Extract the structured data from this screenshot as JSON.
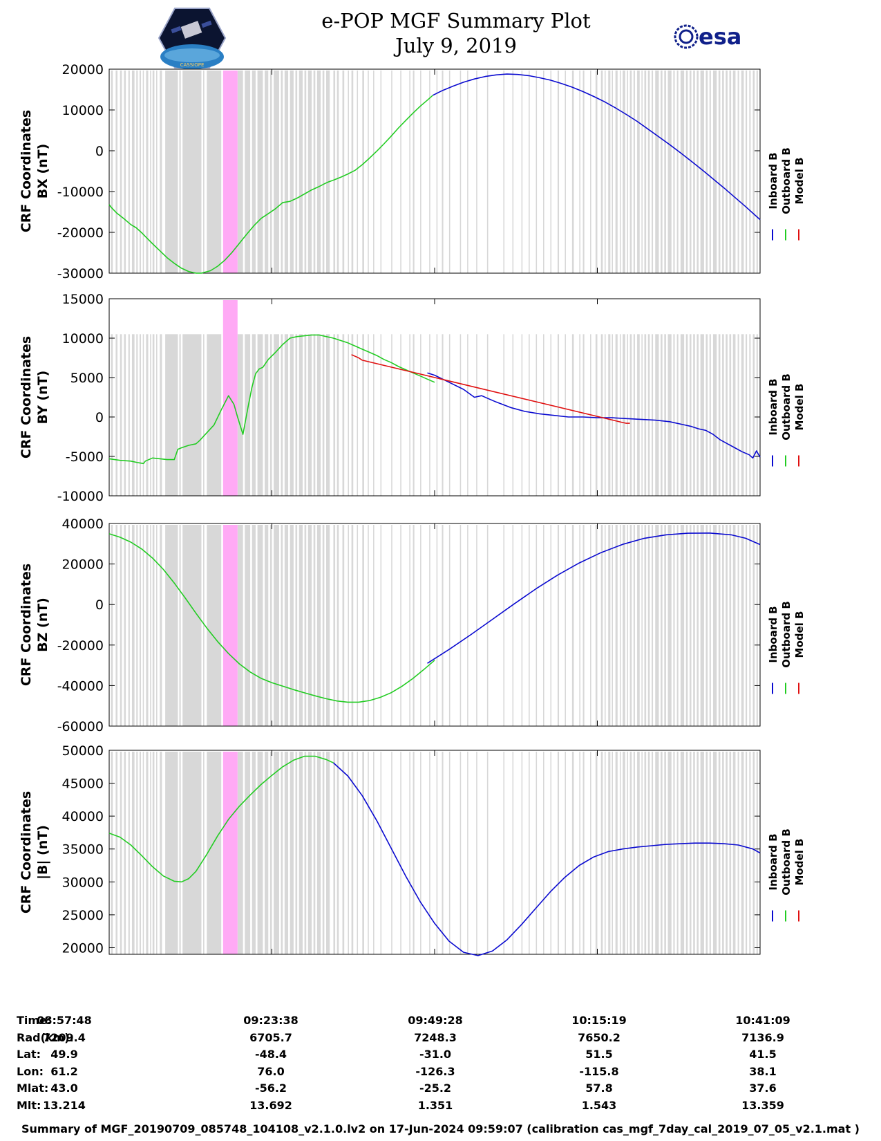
{
  "header": {
    "title_line1": "e-POP MGF Summary Plot",
    "title_line2": "July 9, 2019",
    "logo_left_text": "CASSIOPE",
    "logo_right_text": "esa"
  },
  "colors": {
    "inboard": "#0a0ad0",
    "outboard": "#22cc22",
    "model": "#e01010",
    "gap_bands": "#d8d8d8",
    "highlight_band": "#ffaaf5"
  },
  "chart_data": [
    {
      "type": "line",
      "id": "bx",
      "ylabel": [
        "CRF Coordinates",
        "BX (nT)"
      ],
      "ylim": [
        -30000,
        20000
      ],
      "yticks": [
        -30000,
        -20000,
        -10000,
        0,
        10000,
        20000
      ],
      "ytick_labels": [
        "-30000",
        "-20000",
        "-10000",
        "0",
        "10000",
        "20000"
      ],
      "legend": [
        "Inboard B",
        "Outboard B",
        "Model B"
      ],
      "series": [
        {
          "name": "Outboard B",
          "color": "#22cc22",
          "x": [
            0,
            0.5,
            2,
            4,
            6,
            7.5,
            9,
            10,
            12,
            14,
            16,
            18,
            20,
            22,
            24,
            25.5,
            28,
            30,
            32,
            34,
            36,
            38,
            40,
            42,
            44,
            46,
            48,
            50,
            52,
            54,
            56,
            58,
            59.5,
            60.5,
            62,
            64,
            66,
            68,
            70,
            72,
            74,
            76,
            78,
            80,
            82,
            84,
            86,
            88,
            89.5
          ],
          "y": [
            -13200,
            -13800,
            -15200,
            -16600,
            -18100,
            -18900,
            -20100,
            -21000,
            -22800,
            -24500,
            -26200,
            -27600,
            -28800,
            -29600,
            -30000,
            -30000,
            -29400,
            -28300,
            -26800,
            -24900,
            -22700,
            -20500,
            -18400,
            -16600,
            -15400,
            -14200,
            -12700,
            -12400,
            -11600,
            -10600,
            -9600,
            -8800,
            -8100,
            -7700,
            -7200,
            -6500,
            -5700,
            -4800,
            -3400,
            -1800,
            -100,
            1700,
            3600,
            5600,
            7400,
            9200,
            10900,
            12400,
            13600
          ]
        },
        {
          "name": "Inboard B",
          "color": "#0a0ad0",
          "x": [
            89.5,
            92,
            95,
            98,
            101,
            104,
            107,
            110,
            113,
            116,
            119,
            122,
            125,
            128,
            131,
            134,
            137,
            140,
            143,
            146,
            149,
            152,
            155,
            158,
            161,
            164,
            167,
            170,
            173,
            176,
            179,
            180
          ],
          "y": [
            13600,
            14700,
            15800,
            16800,
            17600,
            18200,
            18600,
            18800,
            18700,
            18400,
            17900,
            17300,
            16500,
            15600,
            14500,
            13300,
            12000,
            10500,
            8900,
            7200,
            5300,
            3400,
            1500,
            -500,
            -2600,
            -4700,
            -6900,
            -9100,
            -11400,
            -13700,
            -16100,
            -16900
          ]
        }
      ]
    },
    {
      "type": "line",
      "id": "by",
      "ylabel": [
        "CRF Coordinates",
        "BY (nT)"
      ],
      "ylim": [
        -10000,
        15000
      ],
      "yticks": [
        -10000,
        -5000,
        0,
        5000,
        10000,
        15000
      ],
      "ytick_labels": [
        "-10000",
        "-5000",
        "0",
        "5000",
        "10000",
        "15000"
      ],
      "legend": [
        "Inboard B",
        "Outboard B",
        "Model B"
      ],
      "series": [
        {
          "name": "Outboard B",
          "color": "#22cc22",
          "x": [
            0,
            3,
            6,
            8,
            9.5,
            10,
            12,
            14,
            16,
            17,
            18,
            19,
            20,
            22,
            24,
            25,
            27,
            29,
            31,
            33,
            34.5,
            35.5,
            37,
            38.5,
            39.5,
            40.5,
            41.5,
            42.5,
            44,
            46,
            48,
            50,
            52,
            54,
            56,
            58,
            60,
            62,
            64,
            66,
            68,
            70,
            72,
            74,
            76,
            78,
            80,
            82,
            84,
            86,
            88,
            90
          ],
          "y": [
            -5300,
            -5500,
            -5600,
            -5800,
            -5900,
            -5600,
            -5200,
            -5300,
            -5400,
            -5400,
            -5400,
            -4100,
            -3900,
            -3600,
            -3400,
            -3000,
            -2000,
            -1000,
            900,
            2700,
            1600,
            0,
            -2200,
            1500,
            3800,
            5500,
            6100,
            6300,
            7300,
            8200,
            9200,
            10000,
            10200,
            10300,
            10400,
            10400,
            10200,
            10000,
            9700,
            9400,
            9000,
            8600,
            8200,
            7800,
            7300,
            6900,
            6400,
            6000,
            5600,
            5200,
            4800,
            4400
          ]
        },
        {
          "name": "Inboard B",
          "color": "#0a0ad0",
          "x": [
            88,
            90,
            94,
            98,
            101,
            103,
            105,
            107,
            111,
            115,
            119,
            123,
            127,
            131,
            135,
            139,
            143,
            147,
            151,
            155,
            159,
            161,
            163,
            165,
            167,
            169,
            171,
            173,
            175,
            177,
            178,
            179,
            180
          ],
          "y": [
            5600,
            5300,
            4400,
            3500,
            2500,
            2700,
            2300,
            1900,
            1200,
            700,
            400,
            200,
            0,
            0,
            -100,
            -100,
            -200,
            -300,
            -400,
            -600,
            -1000,
            -1200,
            -1500,
            -1700,
            -2200,
            -2900,
            -3400,
            -3900,
            -4400,
            -4800,
            -5200,
            -4300,
            -5100
          ]
        },
        {
          "name": "Model B",
          "color": "#e01010",
          "x": [
            67,
            68,
            69,
            70,
            142,
            143,
            144
          ],
          "y": [
            7900,
            7700,
            7500,
            7200,
            -700,
            -800,
            -800
          ]
        }
      ]
    },
    {
      "type": "line",
      "id": "bz",
      "ylabel": [
        "CRF Coordinates",
        "BZ (nT)"
      ],
      "ylim": [
        -60000,
        40000
      ],
      "yticks": [
        -60000,
        -40000,
        -20000,
        0,
        20000,
        40000
      ],
      "ytick_labels": [
        "-60000",
        "-40000",
        "-20000",
        "0",
        "20000",
        "40000"
      ],
      "legend": [
        "Inboard B",
        "Outboard B",
        "Model B"
      ],
      "series": [
        {
          "name": "Outboard B",
          "color": "#22cc22",
          "x": [
            0,
            3,
            6,
            9,
            12,
            15,
            18,
            21,
            24,
            27,
            30,
            33,
            36,
            39,
            42,
            45,
            48,
            51,
            54,
            57,
            60,
            63,
            66,
            69,
            72,
            75,
            78,
            81,
            84,
            87,
            90
          ],
          "y": [
            34900,
            33200,
            30800,
            27400,
            22900,
            17300,
            10600,
            3300,
            -4300,
            -11600,
            -18300,
            -24200,
            -29300,
            -33300,
            -36400,
            -38600,
            -40300,
            -42000,
            -43600,
            -45100,
            -46500,
            -47600,
            -48200,
            -48200,
            -47400,
            -45800,
            -43500,
            -40300,
            -36500,
            -32100,
            -27500
          ]
        },
        {
          "name": "Inboard B",
          "color": "#0a0ad0",
          "x": [
            88,
            94,
            100,
            106,
            112,
            118,
            124,
            130,
            136,
            142,
            148,
            154,
            160,
            166,
            172,
            176,
            180
          ],
          "y": [
            -29000,
            -22200,
            -14900,
            -7300,
            300,
            7700,
            14500,
            20500,
            25600,
            29700,
            32700,
            34400,
            35200,
            35300,
            34400,
            32700,
            29600
          ]
        }
      ]
    },
    {
      "type": "line",
      "id": "btotal",
      "ylabel": [
        "CRF Coordinates",
        "|B| (nT)"
      ],
      "ylim": [
        19000,
        50000
      ],
      "yticks": [
        20000,
        25000,
        30000,
        35000,
        40000,
        45000,
        50000
      ],
      "ytick_labels": [
        "20000",
        "25000",
        "30000",
        "35000",
        "40000",
        "45000",
        "50000"
      ],
      "legend": [
        "Inboard B",
        "Outboard B",
        "Model B"
      ],
      "series": [
        {
          "name": "Outboard B",
          "color": "#22cc22",
          "x": [
            0,
            3,
            6,
            9,
            12,
            15,
            18,
            20,
            22,
            24,
            27,
            30,
            33,
            36,
            39,
            42,
            45,
            48,
            51,
            54,
            57,
            60,
            62
          ],
          "y": [
            37400,
            36800,
            35600,
            34000,
            32300,
            30900,
            30100,
            30000,
            30500,
            31600,
            34200,
            37000,
            39500,
            41500,
            43200,
            44800,
            46200,
            47500,
            48500,
            49100,
            49100,
            48600,
            48100
          ]
        },
        {
          "name": "Inboard B",
          "color": "#0a0ad0",
          "x": [
            62,
            66,
            70,
            74,
            78,
            82,
            86,
            90,
            94,
            98,
            102,
            106,
            110,
            114,
            118,
            122,
            126,
            130,
            134,
            138,
            142,
            146,
            150,
            154,
            158,
            162,
            166,
            170,
            174,
            178,
            180
          ],
          "y": [
            48100,
            46100,
            43100,
            39300,
            35100,
            30900,
            27000,
            23700,
            21000,
            19300,
            18800,
            19500,
            21200,
            23500,
            26000,
            28500,
            30700,
            32500,
            33800,
            34600,
            35000,
            35300,
            35500,
            35700,
            35800,
            35900,
            35900,
            35800,
            35600,
            35000,
            34400
          ]
        }
      ]
    }
  ],
  "time_axis": {
    "range_min": [
      0,
      180
    ],
    "ticks_min": [
      0,
      45,
      90,
      135,
      180
    ],
    "highlight_band_min": [
      31.5,
      35.5
    ],
    "gap_bands_min": [
      [
        0.5,
        1.0
      ],
      [
        1.8,
        2.3
      ],
      [
        3.0,
        3.5
      ],
      [
        4.1,
        4.6
      ],
      [
        5.3,
        5.7
      ],
      [
        6.3,
        7.0
      ],
      [
        7.5,
        7.9
      ],
      [
        8.4,
        8.8
      ],
      [
        9.3,
        9.6
      ],
      [
        10.2,
        10.8
      ],
      [
        11.3,
        11.6
      ],
      [
        12.0,
        12.5
      ],
      [
        13.0,
        13.3
      ],
      [
        14.0,
        14.6
      ],
      [
        15.5,
        19.0
      ],
      [
        19.4,
        19.8
      ],
      [
        20.3,
        25.5
      ],
      [
        26.0,
        26.3
      ],
      [
        27.0,
        31.0
      ],
      [
        35.5,
        37.0
      ],
      [
        37.5,
        39.0
      ],
      [
        39.5,
        40.5
      ],
      [
        41.0,
        42.5
      ],
      [
        43.0,
        44.0
      ],
      [
        44.5,
        45.0
      ],
      [
        45.5,
        47.0
      ],
      [
        47.5,
        48.0
      ],
      [
        48.5,
        49.5
      ],
      [
        50.0,
        51.0
      ],
      [
        51.5,
        52.0
      ],
      [
        52.5,
        53.5
      ],
      [
        54.0,
        54.5
      ],
      [
        55.0,
        56.0
      ],
      [
        56.5,
        57.0
      ],
      [
        57.5,
        58.5
      ],
      [
        59.0,
        59.5
      ],
      [
        60.0,
        61.0
      ],
      [
        62.0,
        62.5
      ],
      [
        63.0,
        63.5
      ],
      [
        64.5,
        65.0
      ],
      [
        66.0,
        66.3
      ],
      [
        67.0,
        67.5
      ],
      [
        68.5,
        68.8
      ],
      [
        70.0,
        70.5
      ],
      [
        71.5,
        71.8
      ],
      [
        73.0,
        73.3
      ],
      [
        75.0,
        75.3
      ],
      [
        78.0,
        78.3
      ],
      [
        80.5,
        80.8
      ],
      [
        83.0,
        83.3
      ],
      [
        84.0,
        84.4
      ],
      [
        86.0,
        86.3
      ],
      [
        88.5,
        88.8
      ],
      [
        90.5,
        90.8
      ],
      [
        92.0,
        92.4
      ],
      [
        94.0,
        94.3
      ],
      [
        97.0,
        97.3
      ],
      [
        99.0,
        99.3
      ],
      [
        101.5,
        101.8
      ],
      [
        104.5,
        104.8
      ],
      [
        109.0,
        109.3
      ],
      [
        111.5,
        111.8
      ],
      [
        114.0,
        114.3
      ],
      [
        116.0,
        116.3
      ],
      [
        118.0,
        118.3
      ],
      [
        120.0,
        120.3
      ],
      [
        122.0,
        122.3
      ],
      [
        124.0,
        124.4
      ],
      [
        126.0,
        126.3
      ],
      [
        128.0,
        128.5
      ],
      [
        130.0,
        130.3
      ],
      [
        131.0,
        131.4
      ],
      [
        133.0,
        133.3
      ],
      [
        134.5,
        135.0
      ],
      [
        136.0,
        136.5
      ],
      [
        137.0,
        137.3
      ],
      [
        138.0,
        138.6
      ],
      [
        139.0,
        139.3
      ],
      [
        140.0,
        140.6
      ],
      [
        141.2,
        141.5
      ],
      [
        142.0,
        142.7
      ],
      [
        143.2,
        143.5
      ],
      [
        144.0,
        144.5
      ],
      [
        145.0,
        145.4
      ],
      [
        146.0,
        146.7
      ],
      [
        147.2,
        147.5
      ],
      [
        148.0,
        148.5
      ],
      [
        149.0,
        149.5
      ],
      [
        150.0,
        150.4
      ],
      [
        151.0,
        152.0
      ],
      [
        152.5,
        153.0
      ],
      [
        153.5,
        154.0
      ],
      [
        154.5,
        155.5
      ],
      [
        156.0,
        156.4
      ],
      [
        157.0,
        157.4
      ],
      [
        158.0,
        159.0
      ],
      [
        159.5,
        160.0
      ],
      [
        160.5,
        161.0
      ],
      [
        161.5,
        162.0
      ],
      [
        162.5,
        163.0
      ],
      [
        163.5,
        164.5
      ],
      [
        165.0,
        165.5
      ],
      [
        166.0,
        166.4
      ],
      [
        167.0,
        168.0
      ],
      [
        168.5,
        169.0
      ],
      [
        169.5,
        170.0
      ],
      [
        170.5,
        171.0
      ],
      [
        171.5,
        172.0
      ],
      [
        172.5,
        173.2
      ],
      [
        173.8,
        174.2
      ],
      [
        174.8,
        175.5
      ],
      [
        176.0,
        176.4
      ],
      [
        177.0,
        177.4
      ],
      [
        178.0,
        178.5
      ],
      [
        179.0,
        179.4
      ]
    ]
  },
  "info_table": {
    "row_labels": [
      "Time:",
      "Rad(km):",
      "Lat:",
      "Lon:",
      "Mlat:",
      "Mlt:"
    ],
    "columns": [
      [
        "08:57:48",
        "7209.4",
        "49.9",
        "61.2",
        "43.0",
        "13.214"
      ],
      [
        "09:23:38",
        "6705.7",
        "-48.4",
        "76.0",
        "-56.2",
        "13.692"
      ],
      [
        "09:49:28",
        "7248.3",
        "-31.0",
        "-126.3",
        "-25.2",
        "1.351"
      ],
      [
        "10:15:19",
        "7650.2",
        "51.5",
        "-115.8",
        "57.8",
        "1.543"
      ],
      [
        "10:41:09",
        "7136.9",
        "41.5",
        "38.1",
        "37.6",
        "13.359"
      ]
    ]
  },
  "footer": {
    "text": "Summary of MGF_20190709_085748_104108_v2.1.0.lv2 on 17-Jun-2024 09:59:07 (calibration cas_mgf_7day_cal_2019_07_05_v2.1.mat )"
  }
}
